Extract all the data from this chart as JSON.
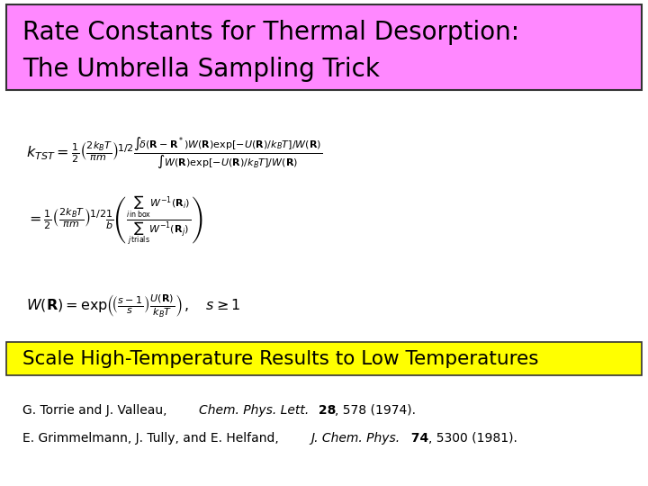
{
  "title_line1": "Rate Constants for Thermal Desorption:",
  "title_line2": "The Umbrella Sampling Trick",
  "title_bg_color": "#FF88FF",
  "subtitle_bg_color": "#FFFF00",
  "subtitle_text": "Scale High-Temperature Results to Low Temperatures",
  "bg_color": "#FFFFFF",
  "figsize": [
    7.2,
    5.4
  ],
  "dpi": 100
}
